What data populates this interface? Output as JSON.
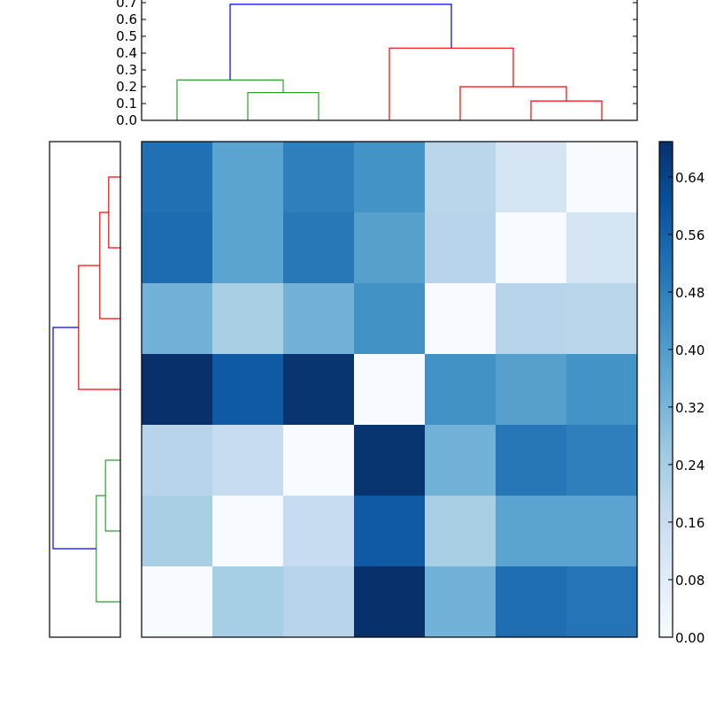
{
  "chart_data": {
    "type": "heatmap",
    "title": "",
    "description": "Clustered heatmap (distance matrix) with row and column dendrograms and a colorbar",
    "colormap": "Blues",
    "vmin": 0.0,
    "vmax": 0.689,
    "n_rows": 7,
    "n_cols": 7,
    "row_labels": [],
    "col_labels": [],
    "values": [
      [
        0.54,
        0.38,
        0.5,
        0.43,
        0.2,
        0.11,
        0.0
      ],
      [
        0.56,
        0.38,
        0.52,
        0.39,
        0.21,
        0.0,
        0.11
      ],
      [
        0.33,
        0.24,
        0.33,
        0.44,
        0.0,
        0.21,
        0.2
      ],
      [
        0.69,
        0.6,
        0.68,
        0.0,
        0.44,
        0.39,
        0.43
      ],
      [
        0.21,
        0.16,
        0.0,
        0.68,
        0.33,
        0.52,
        0.5
      ],
      [
        0.24,
        0.0,
        0.16,
        0.6,
        0.24,
        0.38,
        0.38
      ],
      [
        0.0,
        0.25,
        0.21,
        0.69,
        0.33,
        0.55,
        0.53
      ]
    ],
    "cell_colors": [
      [
        "#2171b5",
        "#5ba3d0",
        "#2f7fbc",
        "#4594c7",
        "#b9d6ea",
        "#d6e5f4",
        "#f7fbff"
      ],
      [
        "#1d6cb1",
        "#5ba3d0",
        "#2878b8",
        "#57a0ce",
        "#b7d4ea",
        "#f7fbff",
        "#d6e5f4"
      ],
      [
        "#72b2d8",
        "#a9cfe5",
        "#72b2d8",
        "#4292c6",
        "#f7fbff",
        "#b7d4ea",
        "#bad6eb"
      ],
      [
        "#08306b",
        "#0f5aa3",
        "#08356f",
        "#f7fbff",
        "#4292c6",
        "#57a0ce",
        "#4594c7"
      ],
      [
        "#b7d4ea",
        "#c8dcf0",
        "#f7fbff",
        "#08356f",
        "#72b2d8",
        "#2676b8",
        "#2f7fbc"
      ],
      [
        "#a9cfe5",
        "#f7fbff",
        "#c8dcf0",
        "#0f5aa3",
        "#a9cfe5",
        "#5ba3d0",
        "#5ba3d0"
      ],
      [
        "#f7fbff",
        "#a6cee4",
        "#b7d4ea",
        "#08306b",
        "#72b2d8",
        "#1f6eb3",
        "#2474b7"
      ]
    ],
    "colorbar": {
      "ticks": [
        "0.00",
        "0.08",
        "0.16",
        "0.24",
        "0.32",
        "0.40",
        "0.48",
        "0.56",
        "0.64"
      ],
      "tick_values": [
        0.0,
        0.08,
        0.16,
        0.24,
        0.32,
        0.4,
        0.48,
        0.56,
        0.64
      ],
      "range": [
        0.0,
        0.689
      ]
    },
    "top_dendrogram": {
      "ylabel": "",
      "yticks": [
        "0.0",
        "0.1",
        "0.2",
        "0.3",
        "0.4",
        "0.5",
        "0.6",
        "0.7"
      ],
      "ytick_values": [
        0.0,
        0.1,
        0.2,
        0.3,
        0.4,
        0.5,
        0.6,
        0.7
      ],
      "ylim": [
        0.0,
        0.7
      ],
      "leaf_positions": [
        0,
        1,
        2,
        3,
        4,
        5,
        6
      ],
      "links": [
        {
          "left": 1,
          "right": 2,
          "height": 0.165,
          "color": "#2ca02c"
        },
        {
          "left": 0,
          "right": 1.5,
          "height": 0.24,
          "color": "#2ca02c"
        },
        {
          "left": 5,
          "right": 6,
          "height": 0.115,
          "color": "#ff0000"
        },
        {
          "left": 4,
          "right": 5.5,
          "height": 0.2,
          "color": "#ff0000"
        },
        {
          "left": 3,
          "right": 4.75,
          "height": 0.43,
          "color": "#ff0000"
        },
        {
          "left": 0.75,
          "right": 3.875,
          "height": 0.69,
          "color": "#0000ff"
        }
      ]
    },
    "left_dendrogram": {
      "orientation": "left",
      "leaf_positions": [
        0,
        1,
        2,
        3,
        4,
        5,
        6
      ],
      "links": [
        {
          "top": 0,
          "bottom": 1,
          "height": 0.165,
          "color": "#ff0000"
        },
        {
          "top": 0.5,
          "bottom": 2,
          "height": 0.29,
          "color": "#ff0000"
        },
        {
          "top": 1.25,
          "bottom": 3,
          "height": 0.59,
          "color": "#ff0000"
        },
        {
          "top": 4,
          "bottom": 5,
          "height": 0.21,
          "color": "#2ca02c"
        },
        {
          "top": 4.5,
          "bottom": 6,
          "height": 0.34,
          "color": "#2ca02c"
        },
        {
          "top": 2.125,
          "bottom": 5.25,
          "height": 0.95,
          "color": "#0000ff"
        }
      ]
    },
    "grid": false,
    "legend": null
  },
  "colors": {
    "cluster_green": "#2ca02c",
    "cluster_red": "#ff0000",
    "link_blue": "#0000ff",
    "axis_line": "#000000"
  }
}
